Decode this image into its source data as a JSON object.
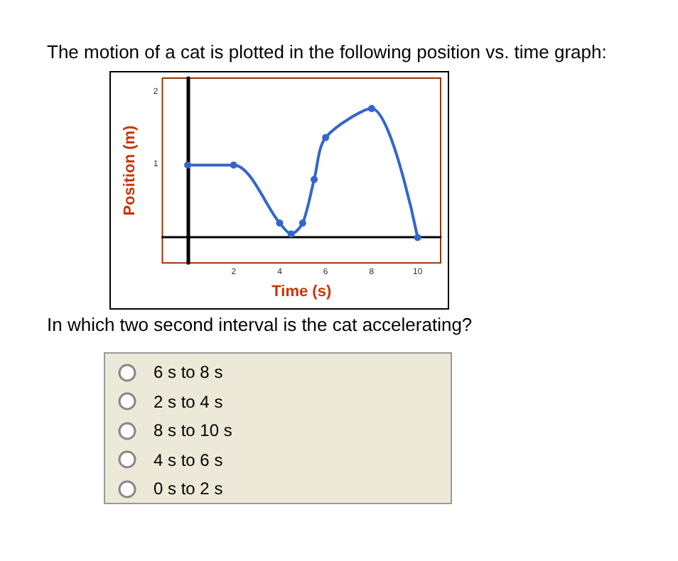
{
  "chart_data": {
    "type": "line",
    "title": "The motion of a cat is plotted in the following position vs. time graph:",
    "xlabel": "Time (s)",
    "ylabel": "Position (m)",
    "x": [
      0,
      2,
      4,
      4.5,
      5,
      5.5,
      6,
      8,
      10
    ],
    "values": [
      1,
      1,
      0.2,
      0.05,
      0.2,
      0.8,
      1.38,
      1.78,
      0
    ],
    "color": "#3366cc",
    "marker": "circle",
    "xlim": [
      -1.1,
      11
    ],
    "xticks": [
      2,
      4,
      6,
      8,
      10
    ],
    "ylim": [
      -0.35,
      2.2
    ],
    "yticks": [
      1,
      2
    ],
    "annotations": [
      "In which two second interval is the cat accelerating?",
      "6 s to 8 s",
      "2 s to 4 s",
      "8 s to 10 s",
      "4 s to 6 s",
      "0 s to 2 s"
    ]
  }
}
